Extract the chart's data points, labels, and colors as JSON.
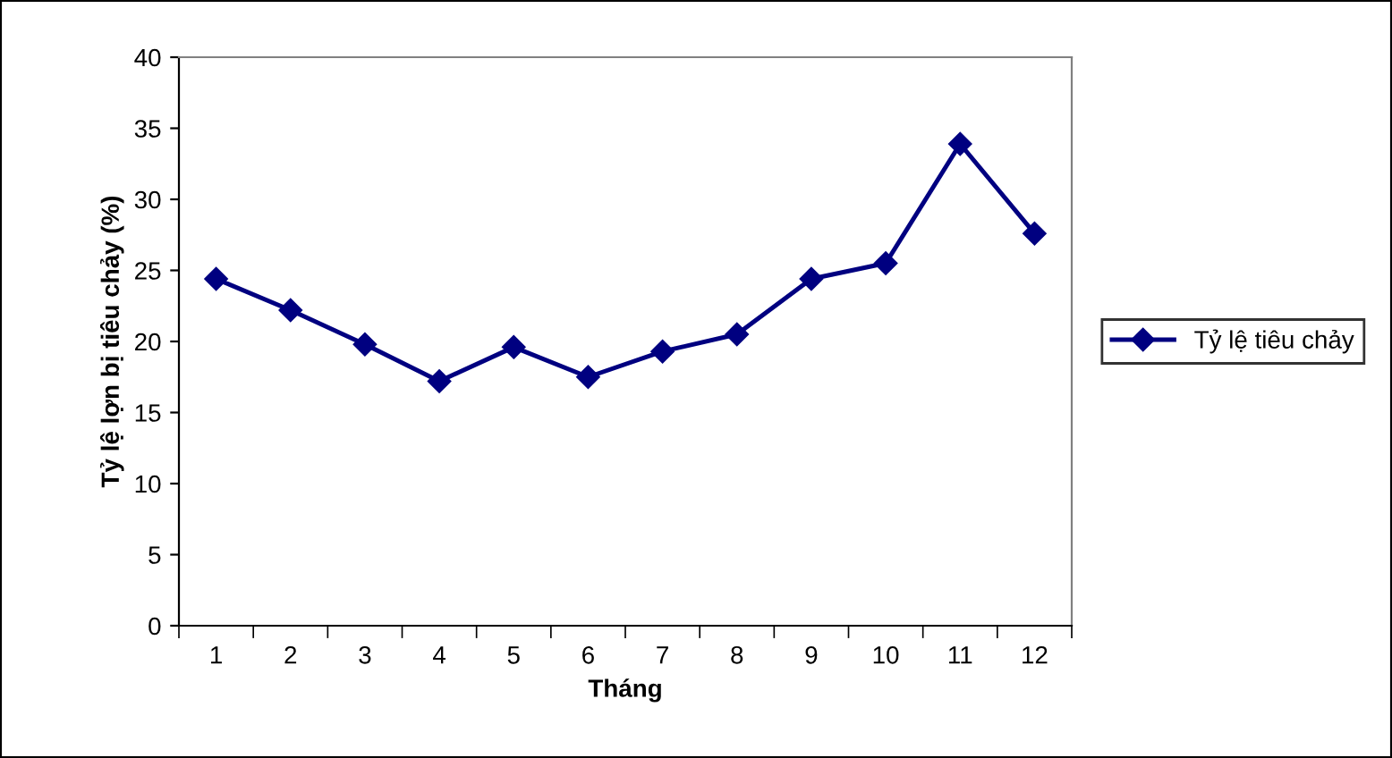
{
  "chart_data": {
    "type": "line",
    "xlabel": "Tháng",
    "ylabel": "Tỷ lệ lợn bị tiêu chảy (%)",
    "categories": [
      "1",
      "2",
      "3",
      "4",
      "5",
      "6",
      "7",
      "8",
      "9",
      "10",
      "11",
      "12"
    ],
    "series": [
      {
        "name": "Tỷ lệ tiêu chảy",
        "color": "#000080",
        "values": [
          24.4,
          22.2,
          19.8,
          17.2,
          19.6,
          17.5,
          19.3,
          20.5,
          24.4,
          25.5,
          33.9,
          27.6
        ]
      }
    ],
    "ylim": [
      0,
      40
    ],
    "yticks": [
      0,
      5,
      10,
      15,
      20,
      25,
      30,
      35,
      40
    ],
    "grid": false,
    "legend": "right",
    "marker": "diamond",
    "line_style": "solid"
  }
}
